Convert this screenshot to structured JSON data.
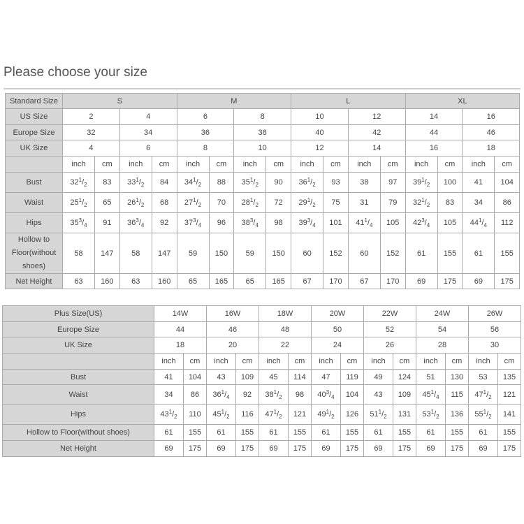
{
  "title": "Please choose your size",
  "standard_table": {
    "rows": [
      {
        "label": "Standard Size",
        "kind": "group",
        "cells": [
          "S",
          "M",
          "L",
          "XL"
        ]
      },
      {
        "label": "US Size",
        "kind": "size",
        "cells": [
          "2",
          "4",
          "6",
          "8",
          "10",
          "12",
          "14",
          "16"
        ]
      },
      {
        "label": "Europe Size",
        "kind": "size",
        "cells": [
          "32",
          "34",
          "36",
          "38",
          "40",
          "42",
          "44",
          "46"
        ]
      },
      {
        "label": "UK Size",
        "kind": "size",
        "cells": [
          "4",
          "6",
          "8",
          "10",
          "12",
          "14",
          "16",
          "18"
        ]
      },
      {
        "label": "",
        "kind": "unit",
        "cells": [
          "inch",
          "cm",
          "inch",
          "cm",
          "inch",
          "cm",
          "inch",
          "cm",
          "inch",
          "cm",
          "inch",
          "cm",
          "inch",
          "cm",
          "inch",
          "cm"
        ]
      },
      {
        "label": "Bust",
        "kind": "measure",
        "cells": [
          "32 1/2",
          "83",
          "33 1/2",
          "84",
          "34 1/2",
          "88",
          "35 1/2",
          "90",
          "36 1/2",
          "93",
          "38",
          "97",
          "39 1/2",
          "100",
          "41",
          "104"
        ]
      },
      {
        "label": "Waist",
        "kind": "measure",
        "cells": [
          "25 1/2",
          "65",
          "26 1/2",
          "68",
          "27 1/2",
          "70",
          "28 1/2",
          "72",
          "29 1/2",
          "75",
          "31",
          "79",
          "32 1/2",
          "83",
          "34",
          "86"
        ]
      },
      {
        "label": "Hips",
        "kind": "measure",
        "cells": [
          "35 3/4",
          "91",
          "36 3/4",
          "92",
          "37 3/4",
          "96",
          "38 3/4",
          "98",
          "39 3/4",
          "101",
          "41 1/4",
          "105",
          "42 3/4",
          "105",
          "44 1/4",
          "112"
        ]
      },
      {
        "label": "Hollow to Floor(without shoes)",
        "kind": "measure",
        "tall": true,
        "cells": [
          "58",
          "147",
          "58",
          "147",
          "59",
          "150",
          "59",
          "150",
          "60",
          "152",
          "60",
          "152",
          "61",
          "155",
          "61",
          "155"
        ]
      },
      {
        "label": "Net Height",
        "kind": "measure",
        "cells": [
          "63",
          "160",
          "63",
          "160",
          "65",
          "165",
          "65",
          "165",
          "67",
          "170",
          "67",
          "170",
          "69",
          "175",
          "69",
          "175"
        ]
      }
    ]
  },
  "plus_table": {
    "rows": [
      {
        "label": "Plus Size(US)",
        "kind": "size",
        "cells": [
          "14W",
          "16W",
          "18W",
          "20W",
          "22W",
          "24W",
          "26W"
        ]
      },
      {
        "label": "Europe Size",
        "kind": "size",
        "cells": [
          "44",
          "46",
          "48",
          "50",
          "52",
          "54",
          "56"
        ]
      },
      {
        "label": "UK Size",
        "kind": "size",
        "cells": [
          "18",
          "20",
          "22",
          "24",
          "26",
          "28",
          "30"
        ]
      },
      {
        "label": "",
        "kind": "unit",
        "cells": [
          "inch",
          "cm",
          "inch",
          "cm",
          "inch",
          "cm",
          "inch",
          "cm",
          "inch",
          "cm",
          "inch",
          "cm",
          "inch",
          "cm"
        ]
      },
      {
        "label": "Bust",
        "kind": "measure",
        "cells": [
          "41",
          "104",
          "43",
          "109",
          "45",
          "114",
          "47",
          "119",
          "49",
          "124",
          "51",
          "130",
          "53",
          "135"
        ]
      },
      {
        "label": "Waist",
        "kind": "measure",
        "cells": [
          "34",
          "86",
          "36 1/4",
          "92",
          "38 1/2",
          "98",
          "40 3/4",
          "104",
          "43",
          "109",
          "45 1/4",
          "115",
          "47 1/2",
          "121"
        ]
      },
      {
        "label": "Hips",
        "kind": "measure",
        "cells": [
          "43 1/2",
          "110",
          "45 1/2",
          "116",
          "47 1/2",
          "121",
          "49 1/2",
          "126",
          "51 1/2",
          "131",
          "53 1/2",
          "136",
          "55 1/2",
          "141"
        ]
      },
      {
        "label": "Hollow to Floor(without shoes)",
        "kind": "measure",
        "cells": [
          "61",
          "155",
          "61",
          "155",
          "61",
          "155",
          "61",
          "155",
          "61",
          "155",
          "61",
          "155",
          "61",
          "155"
        ]
      },
      {
        "label": "Net Height",
        "kind": "measure",
        "cells": [
          "69",
          "175",
          "69",
          "175",
          "69",
          "175",
          "69",
          "175",
          "69",
          "175",
          "69",
          "175",
          "69",
          "175"
        ]
      }
    ]
  }
}
